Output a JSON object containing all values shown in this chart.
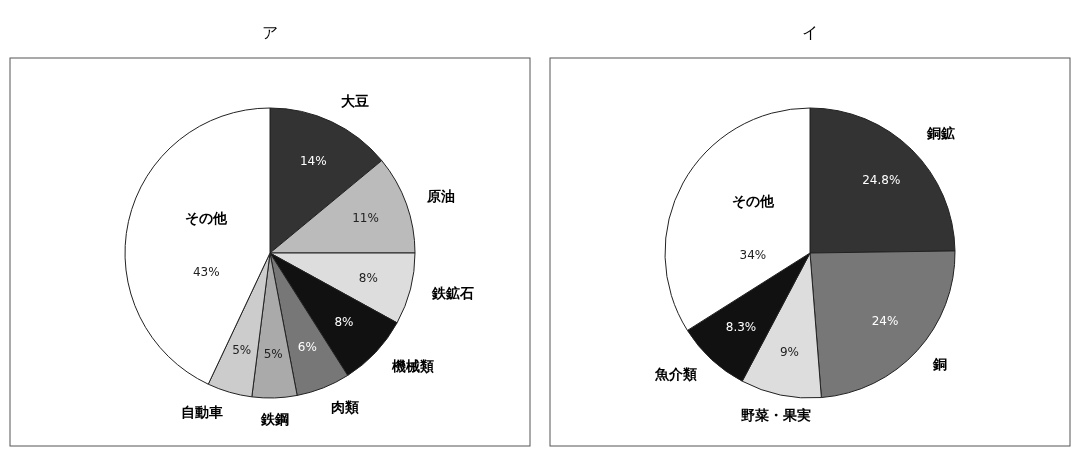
{
  "chart_data": [
    {
      "type": "pie",
      "title": "ア",
      "categories": [
        "大豆",
        "原油",
        "鉄鉱石",
        "機械類",
        "肉類",
        "鉄鋼",
        "自動車",
        "その他"
      ],
      "values": [
        14,
        11,
        8,
        8,
        6,
        5,
        5,
        43
      ],
      "colors": [
        "#333333",
        "#bbbbbb",
        "#dddddd",
        "#111111",
        "#777777",
        "#aaaaaa",
        "#cccccc",
        "#ffffff"
      ],
      "value_labels": [
        "14%",
        "11%",
        "8%",
        "8%",
        "6%",
        "5%",
        "5%",
        "43%"
      ]
    },
    {
      "type": "pie",
      "title": "イ",
      "categories": [
        "銅鉱",
        "銅",
        "野菜・果実",
        "魚介類",
        "その他"
      ],
      "values": [
        24.8,
        24,
        9,
        8.3,
        34
      ],
      "colors": [
        "#333333",
        "#777777",
        "#dddddd",
        "#111111",
        "#ffffff"
      ],
      "value_labels": [
        "24.8%",
        "24%",
        "9%",
        "8.3%",
        "34%"
      ]
    }
  ]
}
